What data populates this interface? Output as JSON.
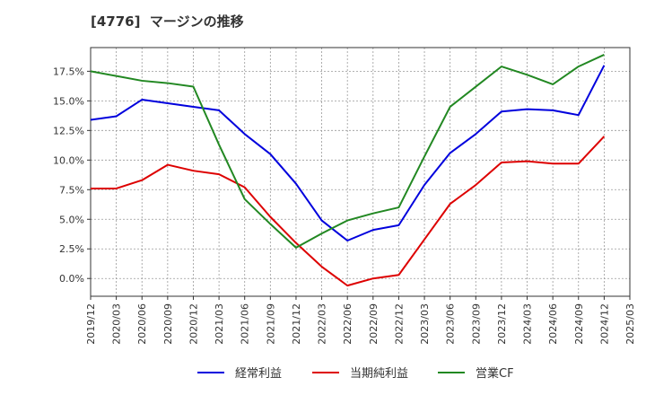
{
  "chart_data": {
    "type": "line",
    "title": "[4776]  マージンの推移",
    "x": [
      "2019/12",
      "2020/03",
      "2020/06",
      "2020/09",
      "2020/12",
      "2021/03",
      "2021/06",
      "2021/09",
      "2021/12",
      "2022/03",
      "2022/06",
      "2022/09",
      "2022/12",
      "2023/03",
      "2023/06",
      "2023/09",
      "2023/12",
      "2024/03",
      "2024/06",
      "2024/09",
      "2024/12",
      "2025/03"
    ],
    "xlabel": "",
    "ylabel": "",
    "ylim": [
      -1.5,
      19.5
    ],
    "yticks": [
      0.0,
      2.5,
      5.0,
      7.5,
      10.0,
      12.5,
      15.0,
      17.5
    ],
    "ytick_labels": [
      "0.0%",
      "2.5%",
      "5.0%",
      "7.5%",
      "10.0%",
      "12.5%",
      "15.0%",
      "17.5%"
    ],
    "grid": true,
    "legend_position": "bottom",
    "series": [
      {
        "name": "経常利益",
        "color": "#0000dd",
        "values": [
          13.4,
          13.7,
          15.1,
          14.8,
          14.5,
          14.2,
          12.2,
          10.5,
          8.0,
          4.9,
          3.2,
          4.1,
          4.5,
          7.9,
          10.6,
          12.2,
          14.1,
          14.3,
          14.2,
          13.8,
          18.0,
          null
        ]
      },
      {
        "name": "当期純利益",
        "color": "#dd0000",
        "values": [
          7.6,
          7.6,
          8.3,
          9.6,
          9.1,
          8.8,
          7.7,
          5.2,
          3.0,
          1.0,
          -0.6,
          0.0,
          0.3,
          3.3,
          6.3,
          7.9,
          9.8,
          9.9,
          9.7,
          9.7,
          12.0,
          null
        ]
      },
      {
        "name": "営業CF",
        "color": "#228822",
        "values": [
          17.5,
          17.1,
          16.7,
          16.5,
          16.2,
          11.3,
          6.7,
          4.6,
          2.6,
          3.8,
          4.9,
          5.5,
          6.0,
          10.3,
          14.5,
          16.2,
          17.9,
          17.2,
          16.4,
          17.9,
          18.9,
          null
        ]
      }
    ]
  }
}
